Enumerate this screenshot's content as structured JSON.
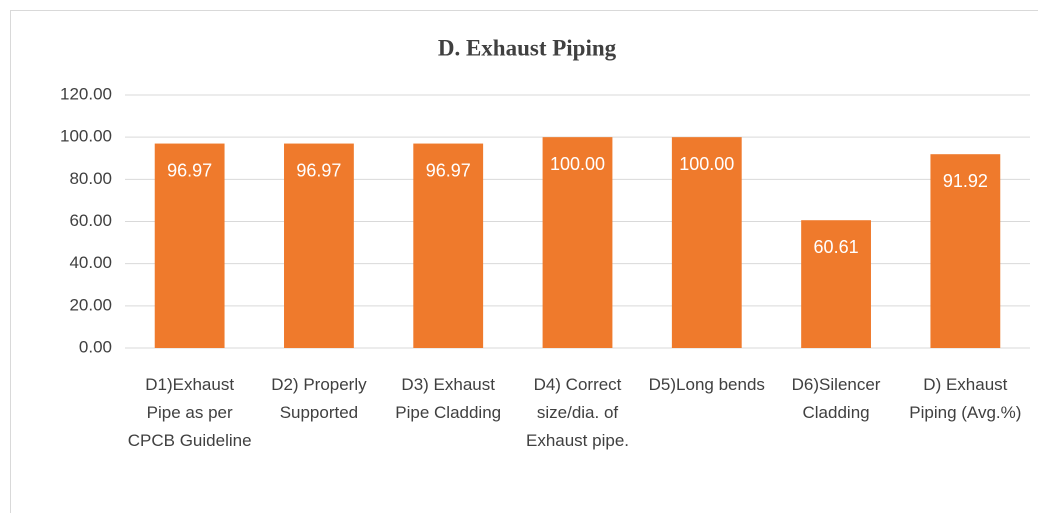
{
  "chart_data": {
    "type": "bar",
    "title": "D. Exhaust Piping",
    "categories": [
      "D1)Exhaust Pipe as per CPCB Guideline",
      "D2) Properly Supported",
      "D3) Exhaust Pipe Cladding",
      "D4) Correct size/dia. of Exhaust pipe.",
      "D5)Long bends",
      "D6)Silencer Cladding",
      "D) Exhaust Piping (Avg.%)"
    ],
    "values": [
      96.97,
      96.97,
      96.97,
      100,
      100,
      60.61,
      91.92
    ],
    "value_labels": [
      "96.97",
      "96.97",
      "96.97",
      "100.00",
      "100.00",
      "60.61",
      "91.92"
    ],
    "color": "#ef7a2c",
    "ylim": [
      0,
      120
    ],
    "yticks": [
      {
        "value": 0,
        "label": "0.00"
      },
      {
        "value": 20,
        "label": "20.00"
      },
      {
        "value": 40,
        "label": "40.00"
      },
      {
        "value": 60,
        "label": "60.00"
      },
      {
        "value": 80,
        "label": "80.00"
      },
      {
        "value": 100,
        "label": "100.00"
      },
      {
        "value": 120,
        "label": "120.00"
      }
    ],
    "grid": true
  }
}
